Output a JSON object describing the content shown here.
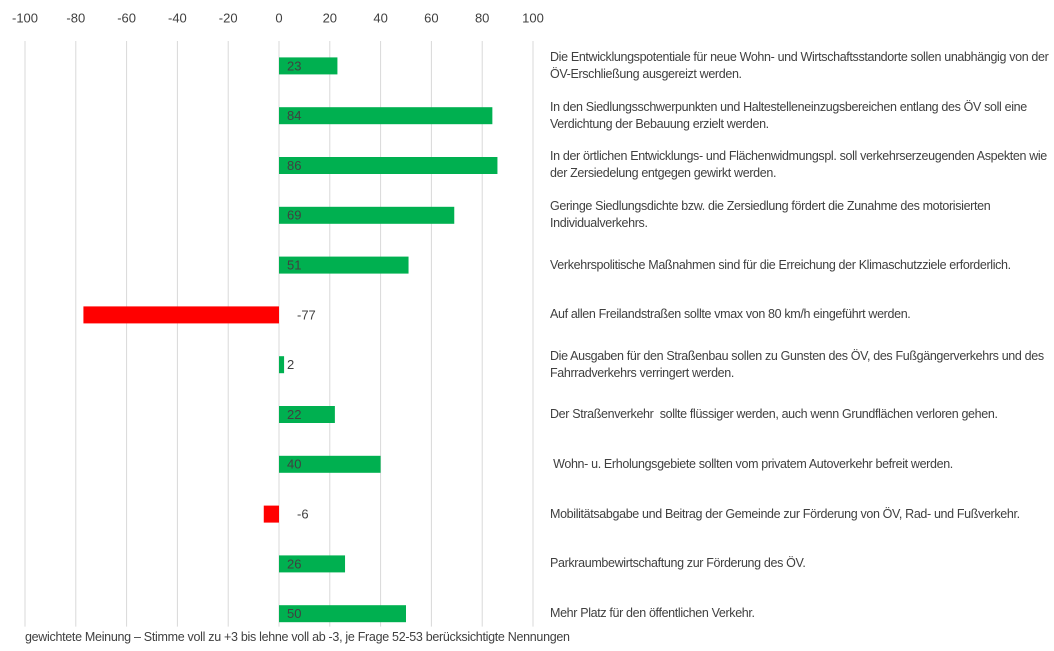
{
  "chart_data": {
    "type": "bar",
    "orientation": "horizontal",
    "categories": [
      "Die Entwicklungspotentiale für neue Wohn- und Wirtschaftsstandorte sollen unabhängig von der ÖV-Erschließung ausgereizt werden.",
      "In den Siedlungsschwerpunkten und Haltestelleneinzugsbereichen entlang des ÖV soll eine Verdichtung der Bebauung erzielt werden.",
      "In der örtlichen Entwicklungs- und Flächenwidmungspl. soll verkehrserzeugenden Aspekten wie der Zersiedelung entgegen gewirkt werden.",
      "Geringe Siedlungsdichte bzw. die Zersiedlung fördert die Zunahme des motorisierten Individualverkehrs.",
      "Verkehrspolitische Maßnahmen sind für die Erreichung der Klimaschutzziele erforderlich.",
      "Auf allen Freilandstraßen sollte vmax von 80 km/h eingeführt werden.",
      "Die Ausgaben für den Straßenbau sollen zu Gunsten des ÖV, des Fußgängerverkehrs und des Fahrradverkehrs verringert werden.",
      "Der Straßenverkehr  sollte flüssiger werden, auch wenn Grundflächen verloren gehen.",
      " Wohn- u. Erholungsgebiete sollten vom privatem Autoverkehr befreit werden.",
      "Mobilitätsabgabe und Beitrag der Gemeinde zur Förderung von ÖV, Rad- und Fußverkehr.",
      "Parkraumbewirtschaftung zur Förderung des ÖV.",
      "Mehr Platz für den öffentlichen Verkehr."
    ],
    "values": [
      23,
      84,
      86,
      69,
      51,
      -77,
      2,
      22,
      40,
      -6,
      26,
      50
    ],
    "positive_color": "#00b050",
    "negative_color": "#ff0000",
    "xlim": [
      -100,
      100
    ],
    "xticks": [
      -100,
      -80,
      -60,
      -40,
      -20,
      0,
      20,
      40,
      60,
      80,
      100
    ],
    "grid": true,
    "footnote": "gewichtete Meinung – Stimme voll zu +3 bis lehne voll ab -3, je Frage 52-53 berücksichtigte Nennungen"
  }
}
